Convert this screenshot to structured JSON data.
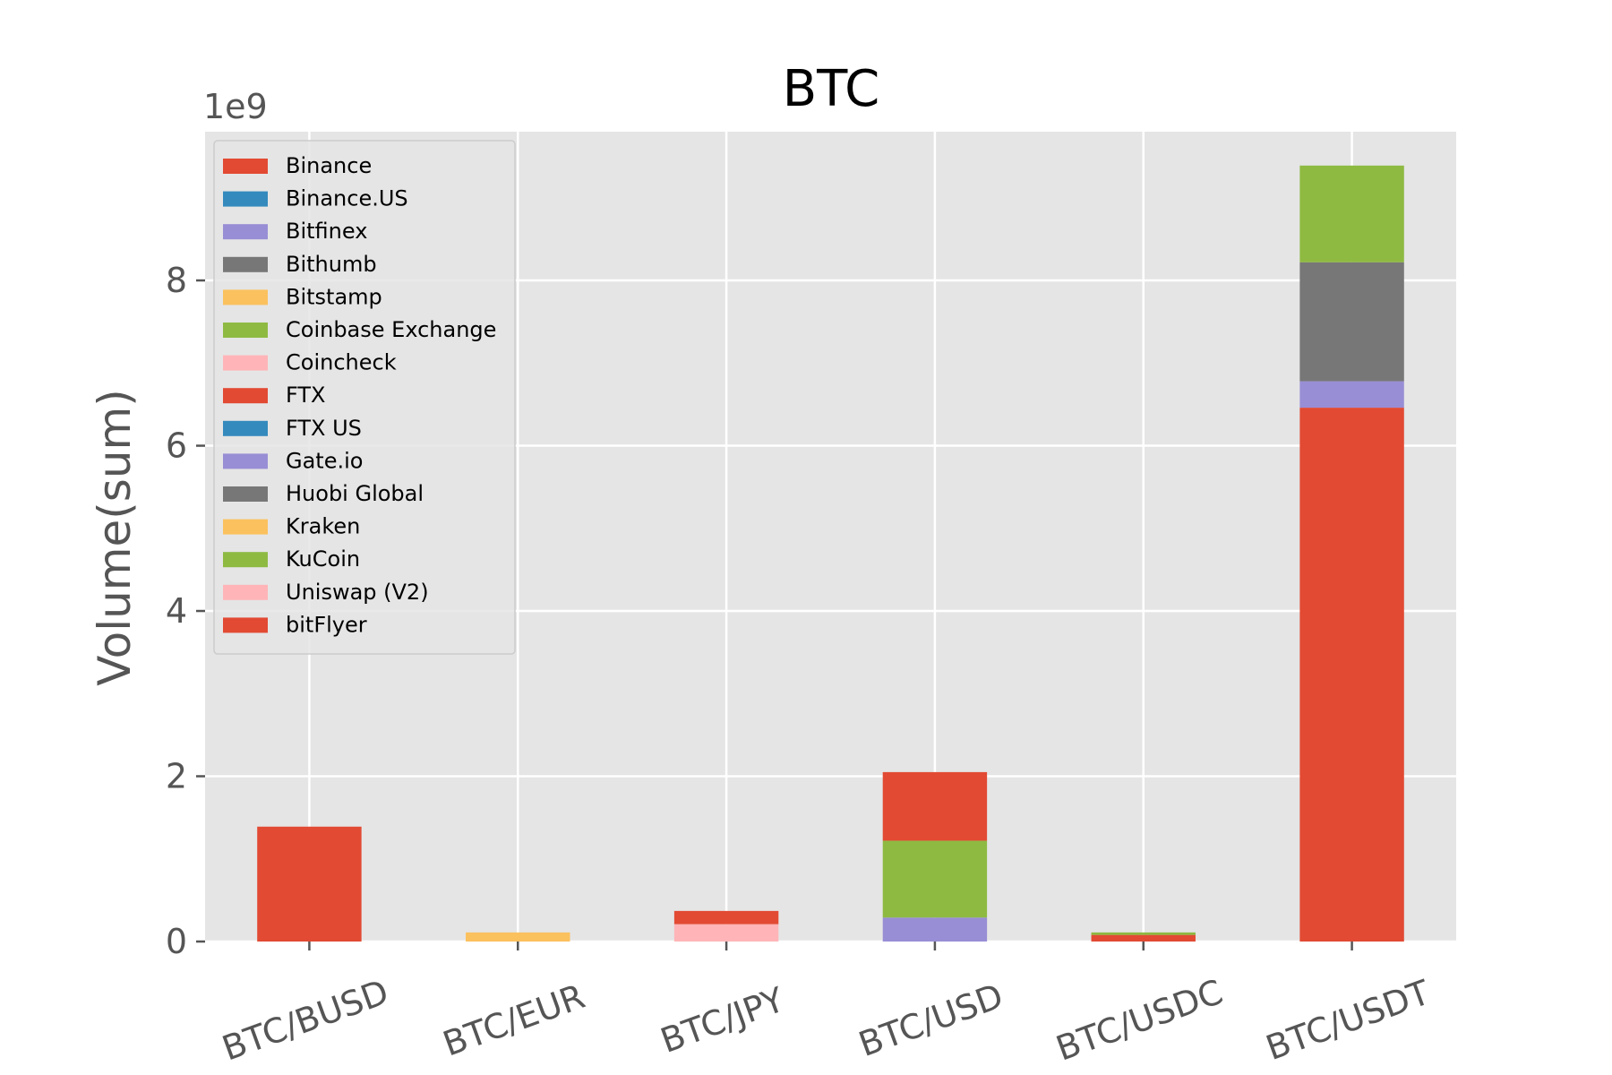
{
  "chart_data": {
    "type": "bar",
    "stacked": true,
    "title": "BTC",
    "xlabel": "",
    "ylabel": "Volume(sum)",
    "y_multiplier_label": "1e9",
    "ylim": [
      0,
      9.8
    ],
    "yticks": [
      0,
      2,
      4,
      6,
      8
    ],
    "grid": true,
    "legend_position": "top-left",
    "categories": [
      "BTC/BUSD",
      "BTC/EUR",
      "BTC/JPY",
      "BTC/USD",
      "BTC/USDC",
      "BTC/USDT"
    ],
    "series": [
      {
        "name": "Binance",
        "color": "#E24A33",
        "values": [
          1.39,
          0,
          0,
          0,
          0,
          6.46
        ]
      },
      {
        "name": "Binance.US",
        "color": "#348ABD",
        "values": [
          0,
          0,
          0,
          0,
          0,
          0
        ]
      },
      {
        "name": "Bitfinex",
        "color": "#988ED5",
        "values": [
          0,
          0,
          0,
          0.29,
          0,
          0.32
        ]
      },
      {
        "name": "Bithumb",
        "color": "#777777",
        "values": [
          0,
          0,
          0,
          0,
          0,
          1.44
        ]
      },
      {
        "name": "Bitstamp",
        "color": "#FBC15E",
        "values": [
          0,
          0,
          0,
          0,
          0,
          0
        ]
      },
      {
        "name": "Coinbase Exchange",
        "color": "#8EBA42",
        "values": [
          0,
          0,
          0,
          0.93,
          0,
          0
        ]
      },
      {
        "name": "Coincheck",
        "color": "#FFB5B8",
        "values": [
          0,
          0,
          0.21,
          0,
          0,
          0
        ]
      },
      {
        "name": "FTX",
        "color": "#E24A33",
        "values": [
          0,
          0,
          0,
          0.83,
          0.08,
          0
        ]
      },
      {
        "name": "FTX US",
        "color": "#348ABD",
        "values": [
          0,
          0,
          0,
          0,
          0,
          0
        ]
      },
      {
        "name": "Gate.io",
        "color": "#988ED5",
        "values": [
          0,
          0,
          0,
          0,
          0,
          0
        ]
      },
      {
        "name": "Huobi Global",
        "color": "#777777",
        "values": [
          0,
          0,
          0,
          0,
          0,
          0
        ]
      },
      {
        "name": "Kraken",
        "color": "#FBC15E",
        "values": [
          0,
          0.11,
          0,
          0,
          0,
          0
        ]
      },
      {
        "name": "KuCoin",
        "color": "#8EBA42",
        "values": [
          0,
          0,
          0,
          0,
          0.03,
          1.17
        ]
      },
      {
        "name": "Uniswap (V2)",
        "color": "#FFB5B8",
        "values": [
          0,
          0,
          0,
          0,
          0,
          0
        ]
      },
      {
        "name": "bitFlyer",
        "color": "#E24A33",
        "values": [
          0,
          0,
          0.16,
          0,
          0,
          0
        ]
      }
    ]
  }
}
